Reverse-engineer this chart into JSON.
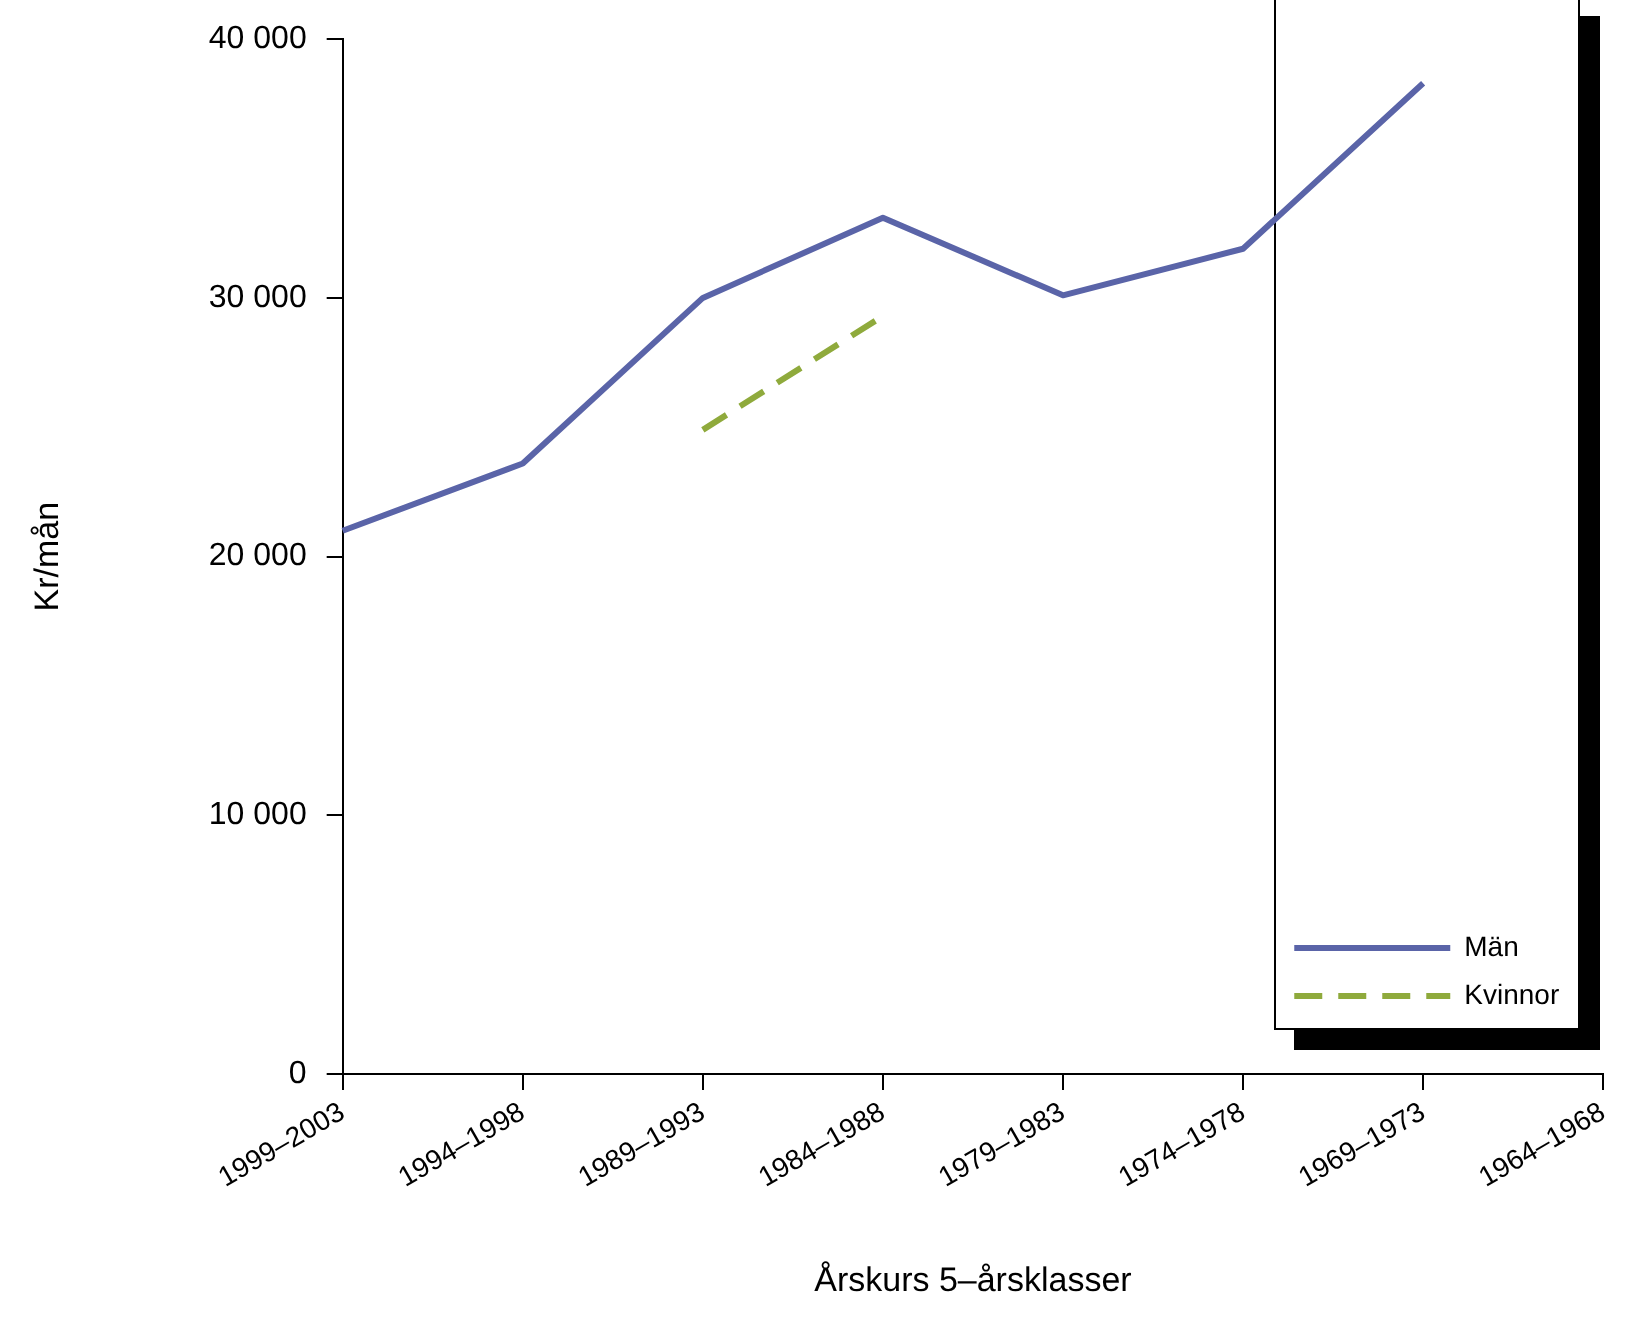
{
  "chart_data": {
    "type": "line",
    "xlabel": "Årskurs 5–årsklasser",
    "ylabel": "Kr/mån",
    "categories": [
      "1999–2003",
      "1994–1998",
      "1989–1993",
      "1984–1988",
      "1979–1983",
      "1974–1978",
      "1969–1973",
      "1964–1968"
    ],
    "series": [
      {
        "name": "Män",
        "color": "#5a64a8",
        "line_style": "solid",
        "values": [
          21000,
          23600,
          30000,
          33100,
          30100,
          31900,
          38300,
          null
        ]
      },
      {
        "name": "Kvinnor",
        "color": "#8faa3c",
        "line_style": "dashed",
        "values": [
          null,
          null,
          24900,
          29300,
          null,
          null,
          null,
          null
        ]
      }
    ],
    "ylim": [
      0,
      40000
    ],
    "yticks": [
      {
        "value": 0,
        "label": "0"
      },
      {
        "value": 10000,
        "label": "10 000"
      },
      {
        "value": 20000,
        "label": "20 000"
      },
      {
        "value": 30000,
        "label": "30 000"
      },
      {
        "value": 40000,
        "label": "40 000"
      }
    ],
    "grid": false,
    "legend": "bottom right",
    "marker": "none"
  }
}
